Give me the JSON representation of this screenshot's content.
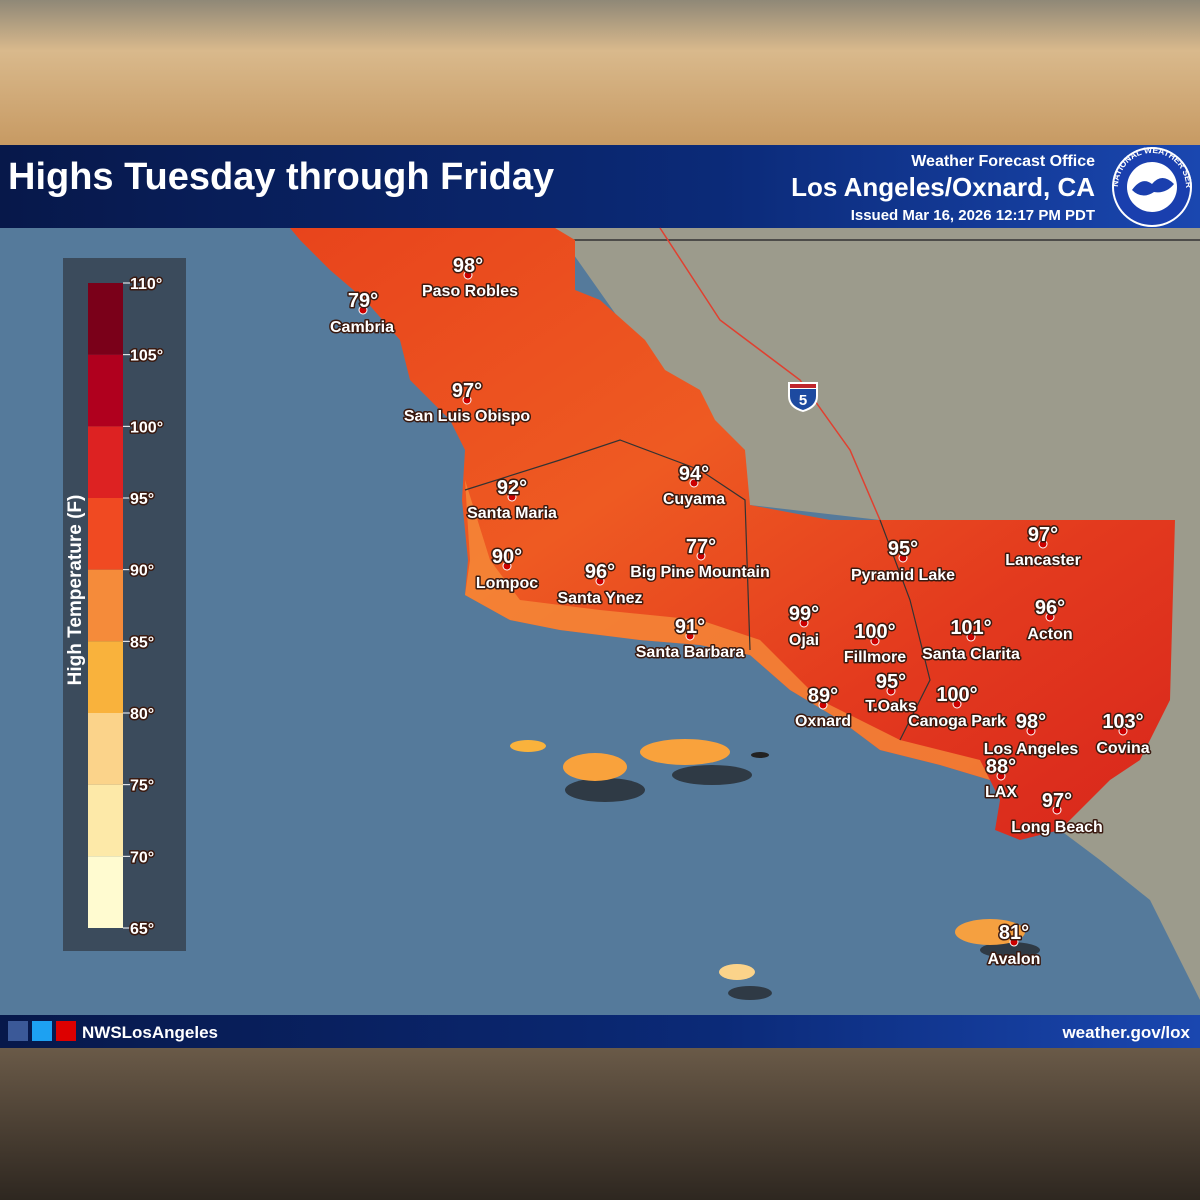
{
  "header": {
    "title": "Highs Tuesday through Friday",
    "office": "Weather Forecast Office",
    "location": "Los Angeles/Oxnard, CA",
    "issued": "Issued Mar 16, 2026 12:17 PM PDT",
    "logo": "NATIONAL WEATHER SERVICE"
  },
  "legend": {
    "title": "High Temperature (F)",
    "ticks": [
      "110°",
      "105°",
      "100°",
      "95°",
      "90°",
      "85°",
      "80°",
      "75°",
      "70°",
      "65°"
    ]
  },
  "highway": "5",
  "cities": [
    {
      "name": "Paso Robles",
      "temp": "98°"
    },
    {
      "name": "Cambria",
      "temp": "79°"
    },
    {
      "name": "San Luis Obispo",
      "temp": "97°"
    },
    {
      "name": "Santa Maria",
      "temp": "92°"
    },
    {
      "name": "Cuyama",
      "temp": "94°"
    },
    {
      "name": "Lompoc",
      "temp": "90°"
    },
    {
      "name": "Santa Ynez",
      "temp": "96°"
    },
    {
      "name": "Big Pine Mountain",
      "temp": "77°"
    },
    {
      "name": "Santa Barbara",
      "temp": "91°"
    },
    {
      "name": "Pyramid Lake",
      "temp": "95°"
    },
    {
      "name": "Lancaster",
      "temp": "97°"
    },
    {
      "name": "Acton",
      "temp": "96°"
    },
    {
      "name": "Ojai",
      "temp": "99°"
    },
    {
      "name": "Fillmore",
      "temp": "100°"
    },
    {
      "name": "Santa Clarita",
      "temp": "101°"
    },
    {
      "name": "T.Oaks",
      "temp": "95°"
    },
    {
      "name": "Oxnard",
      "temp": "89°"
    },
    {
      "name": "Canoga Park",
      "temp": "100°"
    },
    {
      "name": "Los Angeles",
      "temp": "98°"
    },
    {
      "name": "Covina",
      "temp": "103°"
    },
    {
      "name": "LAX",
      "temp": "88°"
    },
    {
      "name": "Long Beach",
      "temp": "97°"
    },
    {
      "name": "Avalon",
      "temp": "81°"
    }
  ],
  "footer": {
    "social": "NWSLosAngeles",
    "website": "weather.gov/lox"
  }
}
